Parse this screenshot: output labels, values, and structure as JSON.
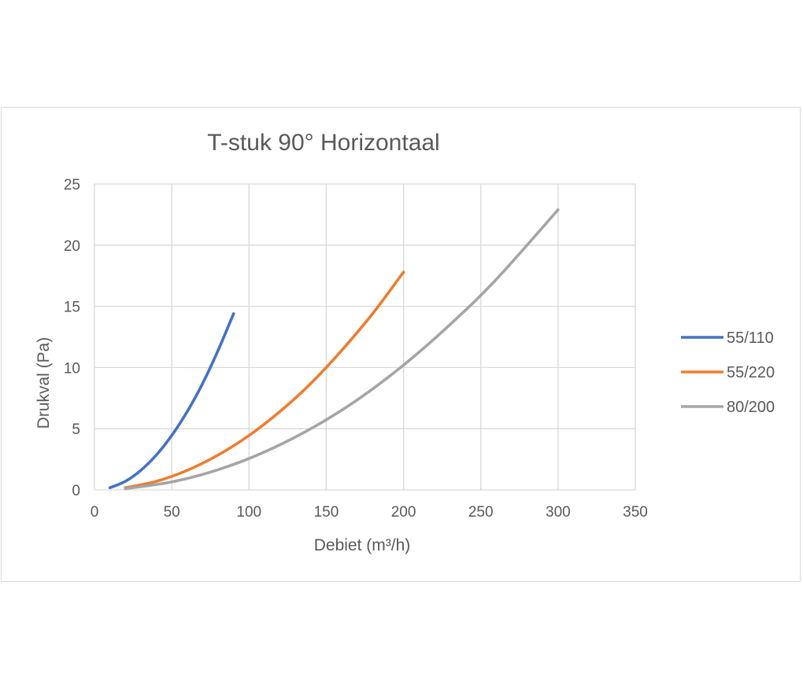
{
  "chart_data": {
    "type": "line",
    "title": "T-stuk 90° Horizontaal",
    "xlabel": "Debiet (m³/h)",
    "ylabel": "Drukval (Pa)",
    "xlim": [
      0,
      350
    ],
    "ylim": [
      0,
      25
    ],
    "xticks": [
      0,
      50,
      100,
      150,
      200,
      250,
      300,
      350
    ],
    "yticks": [
      0,
      5,
      10,
      15,
      20,
      25
    ],
    "grid": true,
    "legend_position": "right",
    "series": [
      {
        "name": "55/110",
        "color": "#4472c4",
        "x": [
          10,
          20,
          30,
          40,
          50,
          60,
          70,
          80,
          90
        ],
        "y": [
          0.18,
          0.7,
          1.6,
          2.85,
          4.45,
          6.4,
          8.7,
          11.4,
          14.4
        ]
      },
      {
        "name": "55/220",
        "color": "#ed7d31",
        "x": [
          20,
          40,
          60,
          80,
          100,
          120,
          140,
          160,
          180,
          200
        ],
        "y": [
          0.18,
          0.7,
          1.6,
          2.85,
          4.45,
          6.4,
          8.7,
          11.4,
          14.4,
          17.8
        ]
      },
      {
        "name": "80/200",
        "color": "#a5a5a5",
        "x": [
          20,
          50,
          80,
          110,
          140,
          170,
          200,
          230,
          260,
          300
        ],
        "y": [
          0.1,
          0.65,
          1.65,
          3.1,
          5.0,
          7.35,
          10.2,
          13.5,
          17.2,
          22.9
        ]
      }
    ]
  }
}
